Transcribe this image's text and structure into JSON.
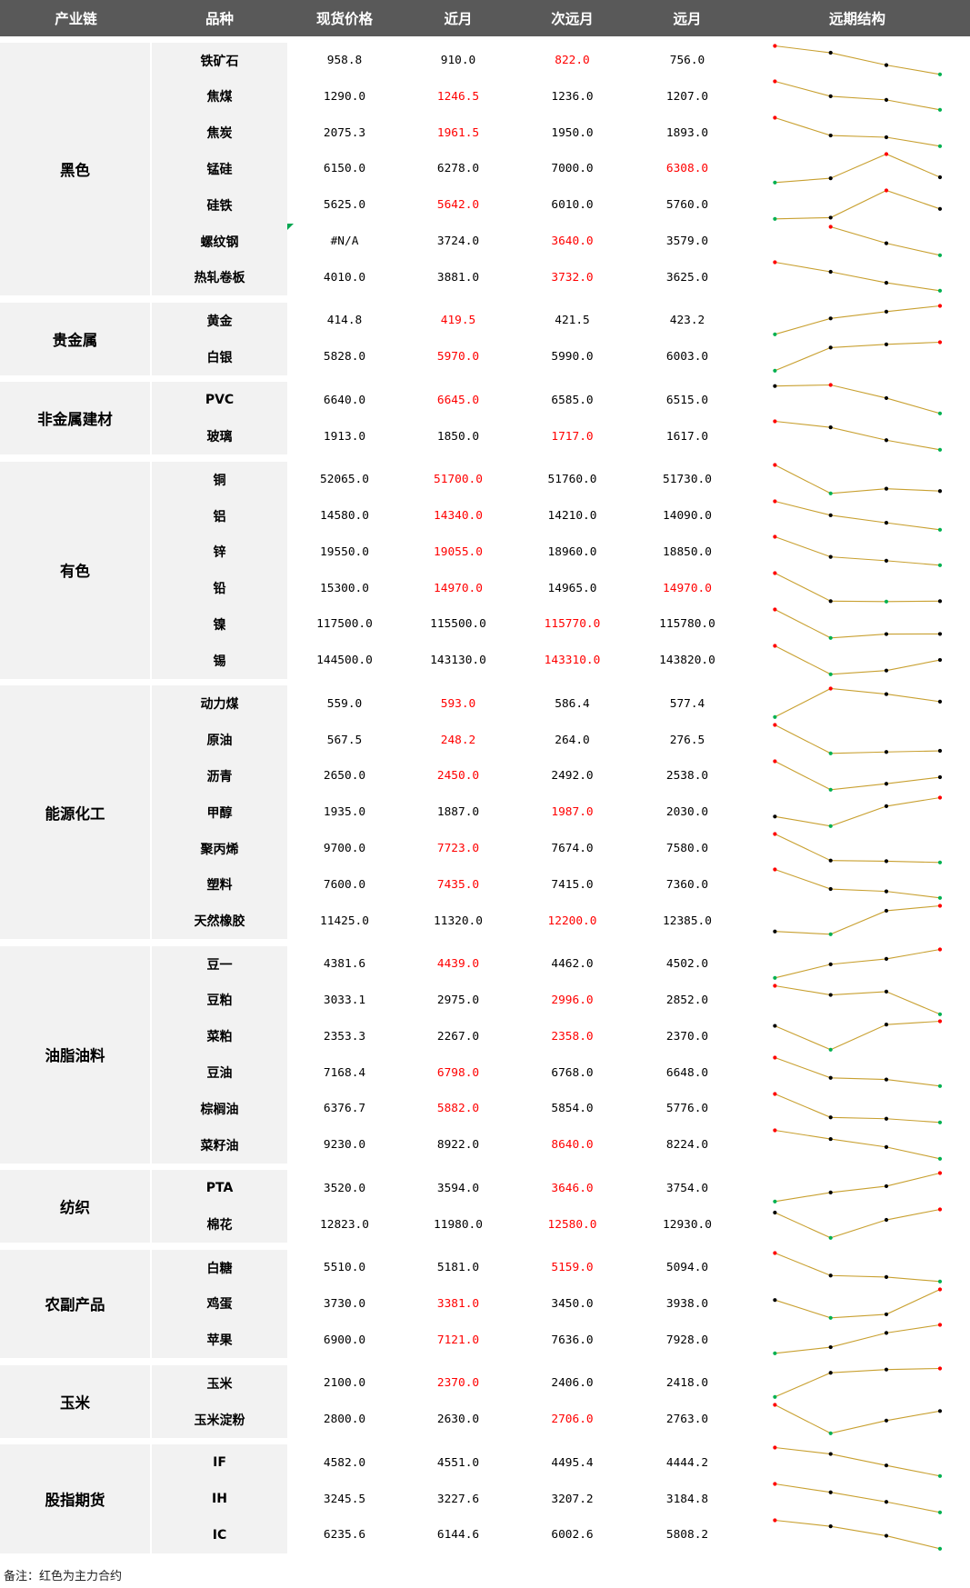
{
  "chart_data": {
    "type": "table",
    "columns": [
      "产业链",
      "品种",
      "现货价格",
      "近月",
      "次远月",
      "远月",
      "远期结构"
    ],
    "groups": [
      {
        "name": "黑色",
        "rows": [
          {
            "name": "铁矿石",
            "spot": "958.8",
            "near": "910.0",
            "next": "822.0",
            "far": "756.0",
            "main": [
              "next"
            ]
          },
          {
            "name": "焦煤",
            "spot": "1290.0",
            "near": "1246.5",
            "next": "1236.0",
            "far": "1207.0",
            "main": [
              "near"
            ]
          },
          {
            "name": "焦炭",
            "spot": "2075.3",
            "near": "1961.5",
            "next": "1950.0",
            "far": "1893.0",
            "main": [
              "near"
            ]
          },
          {
            "name": "锰硅",
            "spot": "6150.0",
            "near": "6278.0",
            "next": "7000.0",
            "far": "6308.0",
            "main": [
              "far"
            ]
          },
          {
            "name": "硅铁",
            "spot": "5625.0",
            "near": "5642.0",
            "next": "6010.0",
            "far": "5760.0",
            "main": [
              "near"
            ]
          },
          {
            "name": "螺纹钢",
            "spot": "#N/A",
            "near": "3724.0",
            "next": "3640.0",
            "far": "3579.0",
            "main": [
              "next"
            ]
          },
          {
            "name": "热轧卷板",
            "spot": "4010.0",
            "near": "3881.0",
            "next": "3732.0",
            "far": "3625.0",
            "main": [
              "next"
            ]
          }
        ]
      },
      {
        "name": "贵金属",
        "rows": [
          {
            "name": "黄金",
            "spot": "414.8",
            "near": "419.5",
            "next": "421.5",
            "far": "423.2",
            "main": [
              "near"
            ]
          },
          {
            "name": "白银",
            "spot": "5828.0",
            "near": "5970.0",
            "next": "5990.0",
            "far": "6003.0",
            "main": [
              "near"
            ]
          }
        ]
      },
      {
        "name": "非金属建材",
        "rows": [
          {
            "name": "PVC",
            "spot": "6640.0",
            "near": "6645.0",
            "next": "6585.0",
            "far": "6515.0",
            "main": [
              "near"
            ]
          },
          {
            "name": "玻璃",
            "spot": "1913.0",
            "near": "1850.0",
            "next": "1717.0",
            "far": "1617.0",
            "main": [
              "next"
            ]
          }
        ]
      },
      {
        "name": "有色",
        "rows": [
          {
            "name": "铜",
            "spot": "52065.0",
            "near": "51700.0",
            "next": "51760.0",
            "far": "51730.0",
            "main": [
              "near"
            ]
          },
          {
            "name": "铝",
            "spot": "14580.0",
            "near": "14340.0",
            "next": "14210.0",
            "far": "14090.0",
            "main": [
              "near"
            ]
          },
          {
            "name": "锌",
            "spot": "19550.0",
            "near": "19055.0",
            "next": "18960.0",
            "far": "18850.0",
            "main": [
              "near"
            ]
          },
          {
            "name": "铅",
            "spot": "15300.0",
            "near": "14970.0",
            "next": "14965.0",
            "far": "14970.0",
            "main": [
              "near",
              "far"
            ]
          },
          {
            "name": "镍",
            "spot": "117500.0",
            "near": "115500.0",
            "next": "115770.0",
            "far": "115780.0",
            "main": [
              "next"
            ]
          },
          {
            "name": "锡",
            "spot": "144500.0",
            "near": "143130.0",
            "next": "143310.0",
            "far": "143820.0",
            "main": [
              "next"
            ]
          }
        ]
      },
      {
        "name": "能源化工",
        "rows": [
          {
            "name": "动力煤",
            "spot": "559.0",
            "near": "593.0",
            "next": "586.4",
            "far": "577.4",
            "main": [
              "near"
            ]
          },
          {
            "name": "原油",
            "spot": "567.5",
            "near": "248.2",
            "next": "264.0",
            "far": "276.5",
            "main": [
              "near"
            ]
          },
          {
            "name": "沥青",
            "spot": "2650.0",
            "near": "2450.0",
            "next": "2492.0",
            "far": "2538.0",
            "main": [
              "near"
            ]
          },
          {
            "name": "甲醇",
            "spot": "1935.0",
            "near": "1887.0",
            "next": "1987.0",
            "far": "2030.0",
            "main": [
              "next"
            ]
          },
          {
            "name": "聚丙烯",
            "spot": "9700.0",
            "near": "7723.0",
            "next": "7674.0",
            "far": "7580.0",
            "main": [
              "near"
            ]
          },
          {
            "name": "塑料",
            "spot": "7600.0",
            "near": "7435.0",
            "next": "7415.0",
            "far": "7360.0",
            "main": [
              "near"
            ]
          },
          {
            "name": "天然橡胶",
            "spot": "11425.0",
            "near": "11320.0",
            "next": "12200.0",
            "far": "12385.0",
            "main": [
              "next"
            ]
          }
        ]
      },
      {
        "name": "油脂油料",
        "rows": [
          {
            "name": "豆一",
            "spot": "4381.6",
            "near": "4439.0",
            "next": "4462.0",
            "far": "4502.0",
            "main": [
              "near"
            ]
          },
          {
            "name": "豆粕",
            "spot": "3033.1",
            "near": "2975.0",
            "next": "2996.0",
            "far": "2852.0",
            "main": [
              "next"
            ]
          },
          {
            "name": "菜粕",
            "spot": "2353.3",
            "near": "2267.0",
            "next": "2358.0",
            "far": "2370.0",
            "main": [
              "next"
            ]
          },
          {
            "name": "豆油",
            "spot": "7168.4",
            "near": "6798.0",
            "next": "6768.0",
            "far": "6648.0",
            "main": [
              "near"
            ]
          },
          {
            "name": "棕榈油",
            "spot": "6376.7",
            "near": "5882.0",
            "next": "5854.0",
            "far": "5776.0",
            "main": [
              "near"
            ]
          },
          {
            "name": "菜籽油",
            "spot": "9230.0",
            "near": "8922.0",
            "next": "8640.0",
            "far": "8224.0",
            "main": [
              "next"
            ]
          }
        ]
      },
      {
        "name": "纺织",
        "rows": [
          {
            "name": "PTA",
            "spot": "3520.0",
            "near": "3594.0",
            "next": "3646.0",
            "far": "3754.0",
            "main": [
              "next"
            ]
          },
          {
            "name": "棉花",
            "spot": "12823.0",
            "near": "11980.0",
            "next": "12580.0",
            "far": "12930.0",
            "main": [
              "next"
            ]
          }
        ]
      },
      {
        "name": "农副产品",
        "rows": [
          {
            "name": "白糖",
            "spot": "5510.0",
            "near": "5181.0",
            "next": "5159.0",
            "far": "5094.0",
            "main": [
              "next"
            ]
          },
          {
            "name": "鸡蛋",
            "spot": "3730.0",
            "near": "3381.0",
            "next": "3450.0",
            "far": "3938.0",
            "main": [
              "near"
            ]
          },
          {
            "name": "苹果",
            "spot": "6900.0",
            "near": "7121.0",
            "next": "7636.0",
            "far": "7928.0",
            "main": [
              "near"
            ]
          }
        ]
      },
      {
        "name": "玉米",
        "rows": [
          {
            "name": "玉米",
            "spot": "2100.0",
            "near": "2370.0",
            "next": "2406.0",
            "far": "2418.0",
            "main": [
              "near"
            ]
          },
          {
            "name": "玉米淀粉",
            "spot": "2800.0",
            "near": "2630.0",
            "next": "2706.0",
            "far": "2763.0",
            "main": [
              "next"
            ]
          }
        ]
      },
      {
        "name": "股指期货",
        "rows": [
          {
            "name": "IF",
            "spot": "4582.0",
            "near": "4551.0",
            "next": "4495.4",
            "far": "4444.2",
            "main": []
          },
          {
            "name": "IH",
            "spot": "3245.5",
            "near": "3227.6",
            "next": "3207.2",
            "far": "3184.8",
            "main": []
          },
          {
            "name": "IC",
            "spot": "6235.6",
            "near": "6144.6",
            "next": "6002.6",
            "far": "5808.2",
            "main": []
          }
        ]
      }
    ]
  },
  "colors": {
    "header_bg": "#595959",
    "header_text": "#ffffff",
    "label_bg": "#f2f2f2",
    "main_contract": "#ff0000",
    "sparkline": "#c8a030",
    "high_point": "#ff0000",
    "low_point": "#00b050",
    "other_point": "#000000",
    "error_indicator": "#00a650"
  },
  "footnote": "备注：红色为主力合约"
}
